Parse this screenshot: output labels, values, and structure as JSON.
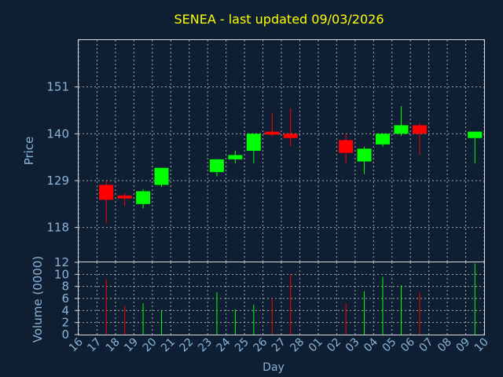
{
  "chart_data": [
    {
      "type": "candlestick",
      "title": "SENEA - last updated 09/03/2026",
      "xlabel": "",
      "ylabel": "Price",
      "ylim": [
        110,
        162
      ],
      "yticks": [
        118,
        129,
        140,
        151
      ],
      "grid": true,
      "colors": {
        "up": "#00ff00",
        "down": "#ff0000"
      },
      "candles": [
        {
          "day": "17",
          "open": 128,
          "high": 129,
          "low": 119,
          "close": 124.5
        },
        {
          "day": "18",
          "open": 125.5,
          "high": 126,
          "low": 123,
          "close": 124.8
        },
        {
          "day": "19",
          "open": 123.5,
          "high": 127,
          "low": 122.5,
          "close": 126.5
        },
        {
          "day": "20",
          "open": 128,
          "high": 132,
          "low": 127.5,
          "close": 132
        },
        {
          "day": "23",
          "open": 131,
          "high": 134,
          "low": 130,
          "close": 134
        },
        {
          "day": "24",
          "open": 134,
          "high": 136,
          "low": 133,
          "close": 135
        },
        {
          "day": "25",
          "open": 136,
          "high": 140,
          "low": 133,
          "close": 140
        },
        {
          "day": "26",
          "open": 140.5,
          "high": 145,
          "low": 139.5,
          "close": 139.8
        },
        {
          "day": "27",
          "open": 140,
          "high": 146,
          "low": 137,
          "close": 139
        },
        {
          "day": "02",
          "open": 138.5,
          "high": 140,
          "low": 133,
          "close": 135.5
        },
        {
          "day": "03",
          "open": 133.5,
          "high": 137,
          "low": 130.5,
          "close": 136.5
        },
        {
          "day": "04",
          "open": 137.5,
          "high": 140,
          "low": 137,
          "close": 140
        },
        {
          "day": "05",
          "open": 140,
          "high": 146.5,
          "low": 139.5,
          "close": 142
        },
        {
          "day": "06",
          "open": 142,
          "high": 142.5,
          "low": 135,
          "close": 140
        },
        {
          "day": "09",
          "open": 139,
          "high": 140.5,
          "low": 133,
          "close": 140.5
        }
      ]
    },
    {
      "type": "bar",
      "xlabel": "Day",
      "ylabel": "Volume (0000)",
      "ylim": [
        0,
        12
      ],
      "yticks": [
        0,
        2,
        4,
        6,
        8,
        10,
        12
      ],
      "x_ticks": [
        "16",
        "17",
        "18",
        "19",
        "20",
        "21",
        "22",
        "23",
        "24",
        "25",
        "26",
        "27",
        "28",
        "01",
        "02",
        "03",
        "04",
        "05",
        "06",
        "07",
        "08",
        "09",
        "10"
      ],
      "volumes": [
        {
          "day": "17",
          "value": 9.2,
          "dir": "down"
        },
        {
          "day": "18",
          "value": 4.8,
          "dir": "down"
        },
        {
          "day": "19",
          "value": 5.2,
          "dir": "up"
        },
        {
          "day": "20",
          "value": 4.0,
          "dir": "up"
        },
        {
          "day": "23",
          "value": 7.0,
          "dir": "up"
        },
        {
          "day": "24",
          "value": 4.2,
          "dir": "up"
        },
        {
          "day": "25",
          "value": 5.0,
          "dir": "up"
        },
        {
          "day": "26",
          "value": 6.0,
          "dir": "down"
        },
        {
          "day": "27",
          "value": 10.0,
          "dir": "down"
        },
        {
          "day": "02",
          "value": 5.2,
          "dir": "down"
        },
        {
          "day": "03",
          "value": 7.2,
          "dir": "up"
        },
        {
          "day": "04",
          "value": 9.6,
          "dir": "up"
        },
        {
          "day": "05",
          "value": 8.2,
          "dir": "up"
        },
        {
          "day": "06",
          "value": 7.0,
          "dir": "down"
        },
        {
          "day": "09",
          "value": 11.8,
          "dir": "up"
        }
      ]
    }
  ]
}
